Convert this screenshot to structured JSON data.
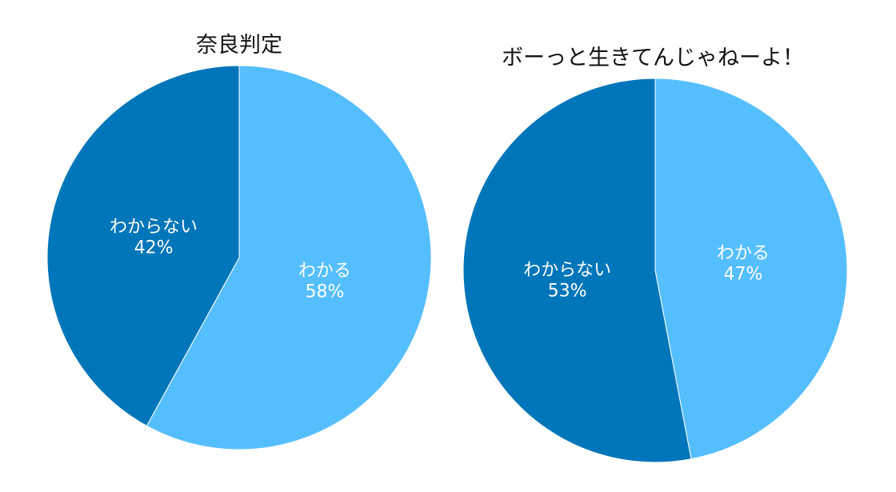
{
  "chart_data": [
    {
      "type": "pie",
      "title": "奈良判定",
      "slices": [
        {
          "label": "わかる",
          "value": 58,
          "pct_label": "58%",
          "color": "#55BEFF"
        },
        {
          "label": "わからない",
          "value": 42,
          "pct_label": "42%",
          "color": "#0076BA"
        }
      ],
      "start": "top",
      "direction": "clockwise"
    },
    {
      "type": "pie",
      "title": "ボーっと生きてんじゃねーよ！",
      "slices": [
        {
          "label": "わかる",
          "value": 47,
          "pct_label": "47%",
          "color": "#55BEFF"
        },
        {
          "label": "わからない",
          "value": 53,
          "pct_label": "53%",
          "color": "#0076BA"
        }
      ],
      "start": "top",
      "direction": "clockwise"
    }
  ]
}
